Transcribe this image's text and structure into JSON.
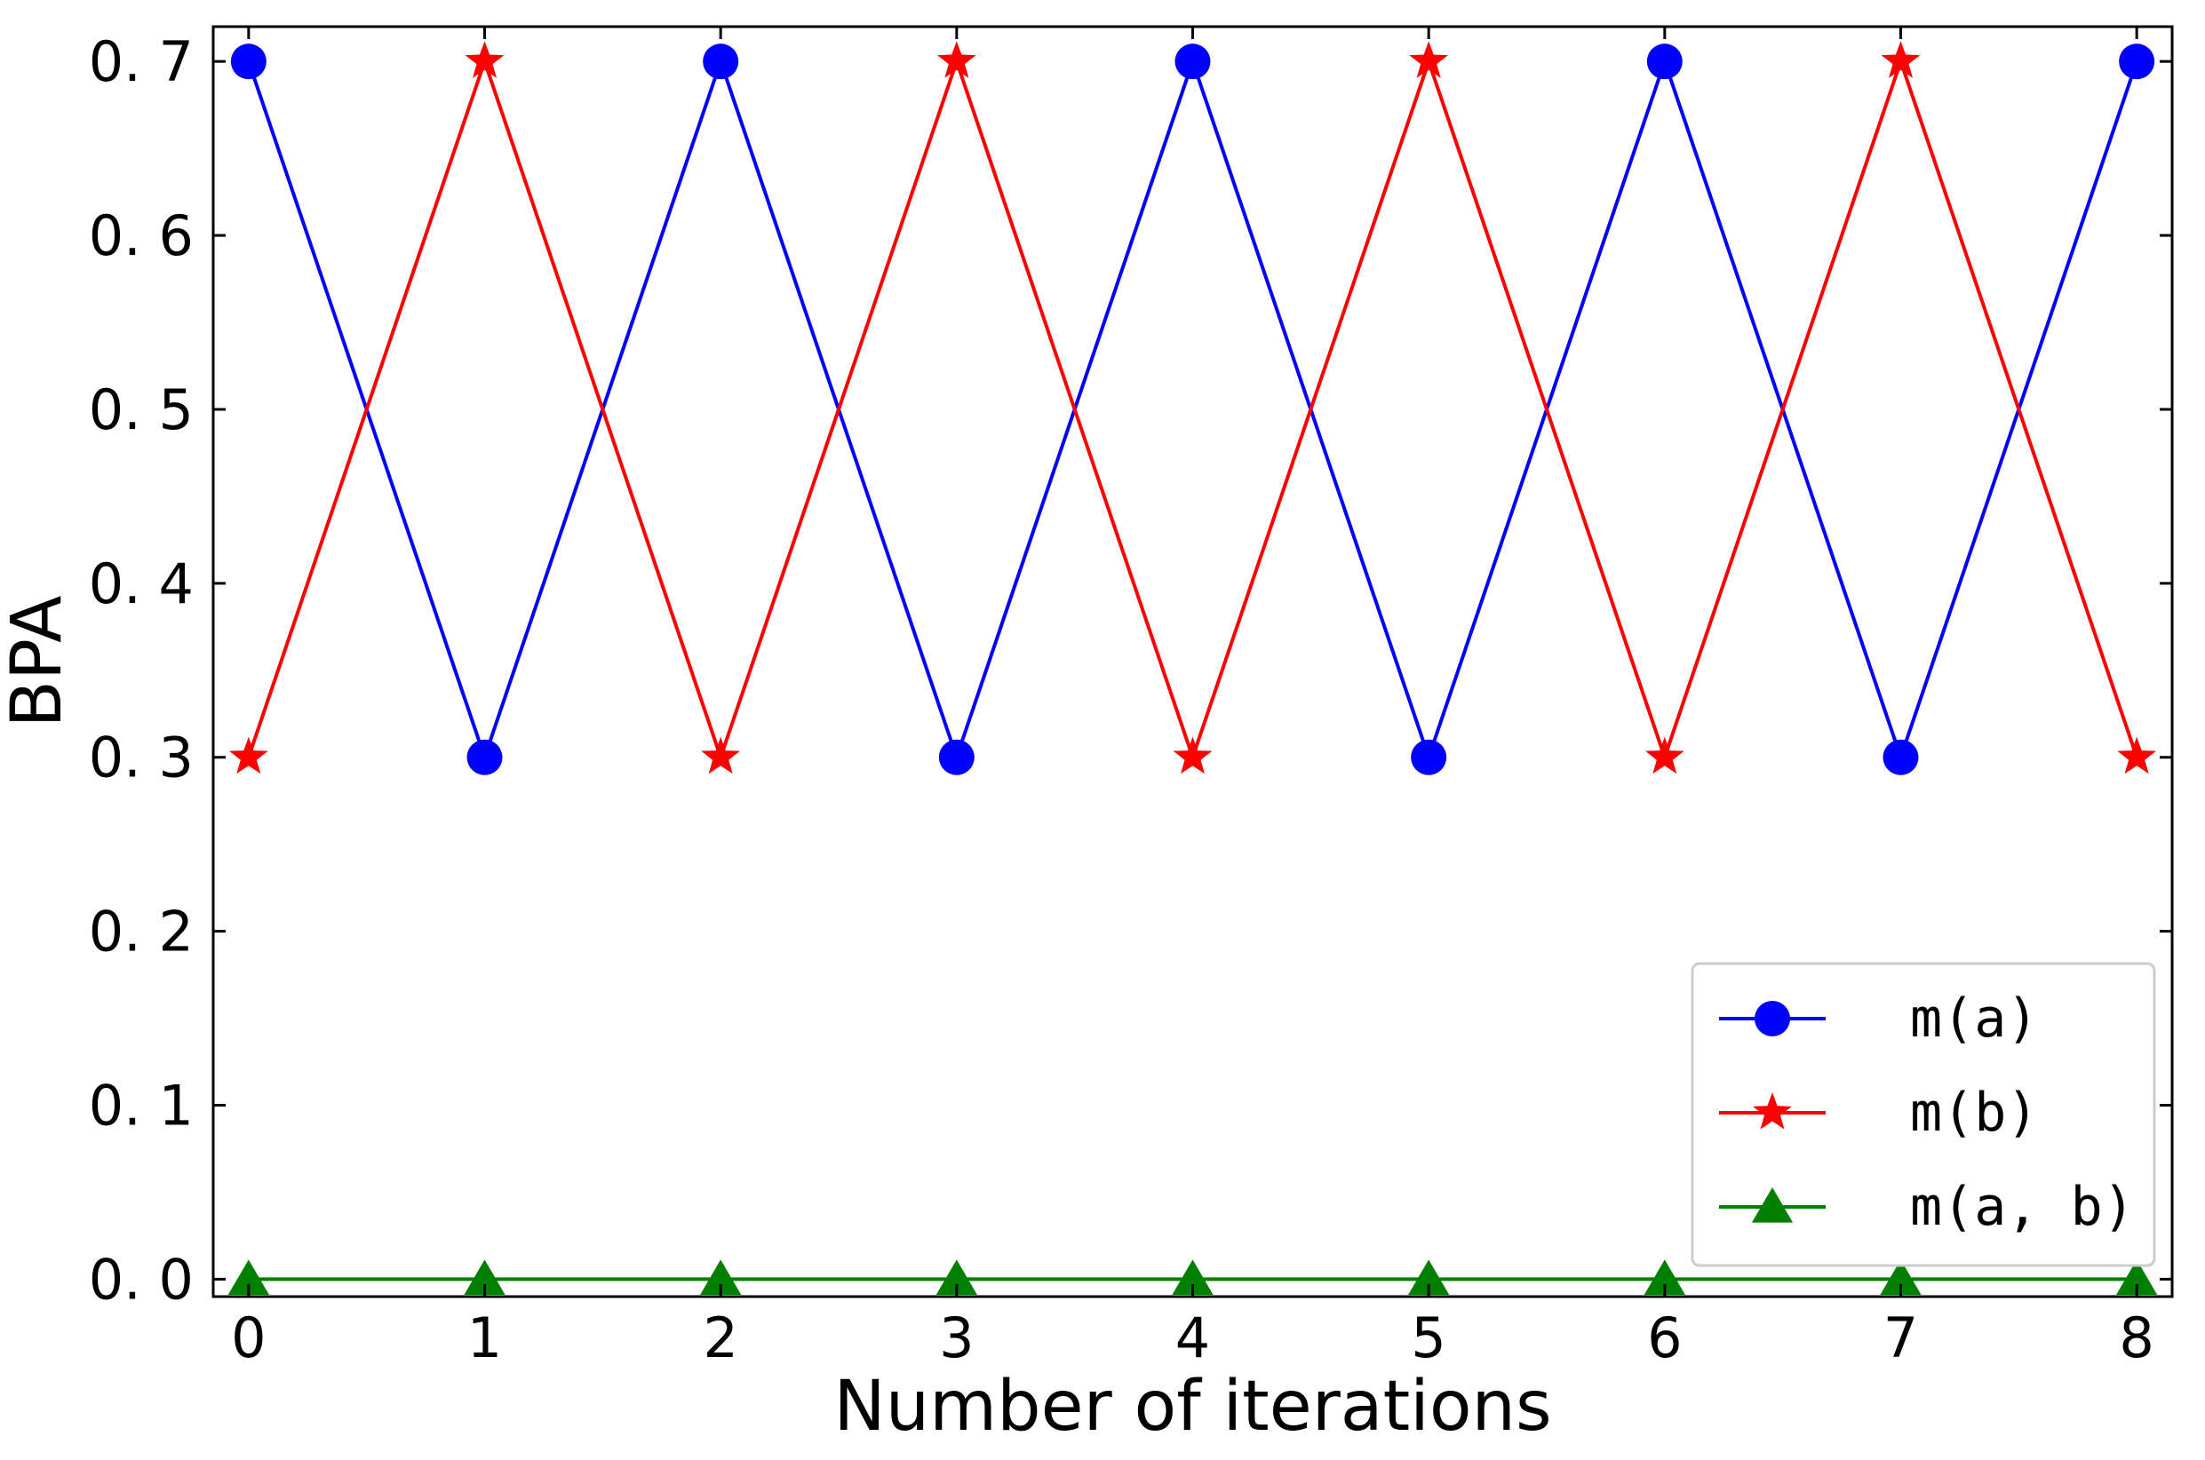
{
  "chart_data": {
    "type": "line",
    "title": "",
    "xlabel": "Number of iterations",
    "ylabel": "BPA",
    "xlim": [
      -0.15,
      8.15
    ],
    "ylim": [
      -0.01,
      0.72
    ],
    "x_ticks": [
      0,
      1,
      2,
      3,
      4,
      5,
      6,
      7,
      8
    ],
    "x_tick_labels": [
      "0",
      "1",
      "2",
      "3",
      "4",
      "5",
      "6",
      "7",
      "8"
    ],
    "y_ticks": [
      0.0,
      0.1,
      0.2,
      0.3,
      0.4,
      0.5,
      0.6,
      0.7
    ],
    "y_tick_labels": [
      "0. 0",
      "0. 1",
      "0. 2",
      "0. 3",
      "0. 4",
      "0. 5",
      "0. 6",
      "0. 7"
    ],
    "grid": false,
    "legend_position": "lower-right",
    "x": [
      0,
      1,
      2,
      3,
      4,
      5,
      6,
      7,
      8
    ],
    "series": [
      {
        "name": "m(a)",
        "color": "#0000ff",
        "marker": "circle",
        "values": [
          0.7,
          0.3,
          0.7,
          0.3,
          0.7,
          0.3,
          0.7,
          0.3,
          0.7
        ]
      },
      {
        "name": "m(b)",
        "color": "#ff0000",
        "marker": "star",
        "values": [
          0.3,
          0.7,
          0.3,
          0.7,
          0.3,
          0.7,
          0.3,
          0.7,
          0.3
        ]
      },
      {
        "name": "m(a, b)",
        "color": "#008000",
        "marker": "triangle",
        "values": [
          0.0,
          0.0,
          0.0,
          0.0,
          0.0,
          0.0,
          0.0,
          0.0,
          0.0
        ]
      }
    ]
  }
}
